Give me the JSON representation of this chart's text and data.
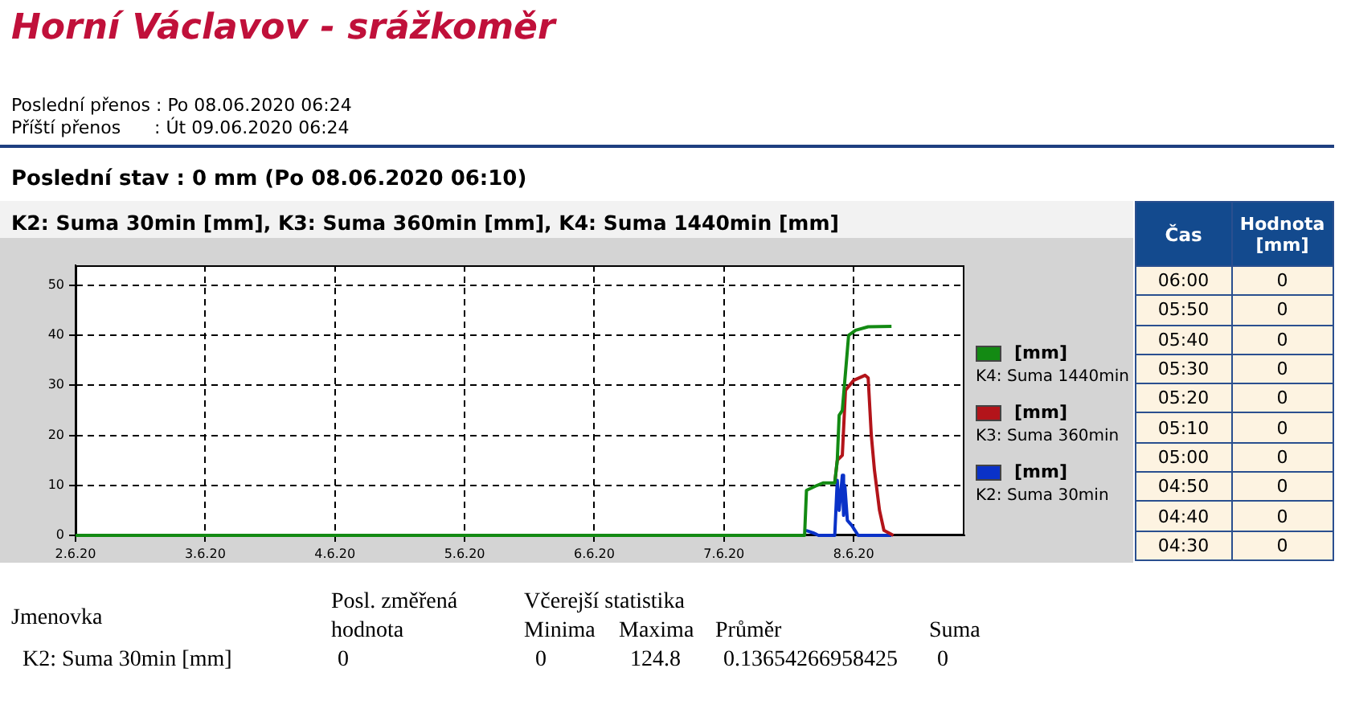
{
  "chart_data": [
    {
      "type": "line",
      "title": "Horní Václavov - srážkoměr",
      "subtitle": "K2: Suma 30min [mm], K3: Suma 360min [mm], K4: Suma 1440min [mm]",
      "annotations": [
        "Poslední přenos : Po 08.06.2020 06:24",
        "Příští přenos      : Út 09.06.2020 06:24",
        "Poslední stav : 0 mm (Po 08.06.2020 06:10)",
        "Jmenovka",
        "Posl. změřená",
        "hodnota",
        "Včerejší statistika",
        "Minima",
        "Maxima",
        "Průměr",
        "Suma",
        "K2: Suma 30min [mm]",
        "0",
        "0",
        "124.8",
        "0.13654266958425",
        "0",
        "Čas",
        "Hodnota [mm]",
        "06:00",
        "0",
        "05:50",
        "0",
        "05:40",
        "0",
        "05:30",
        "0",
        "05:20",
        "0",
        "05:10",
        "0",
        "05:00",
        "0",
        "04:50",
        "0",
        "04:40",
        "0",
        "04:30",
        "0"
      ],
      "series": [
        {
          "name": "[mm]\nK4: Suma 1440min",
          "color": "#138a13",
          "x": [
            "2020-06-02T00:00",
            "2020-06-07T14:55",
            "2020-06-07T15:16",
            "2020-06-07T17:15",
            "2020-06-07T18:25",
            "2020-06-07T20:30",
            "2020-06-07T20:58",
            "2020-06-07T21:19",
            "2020-06-07T21:54",
            "2020-06-07T23:04",
            "2020-06-08T00:21",
            "2020-06-08T02:41",
            "2020-06-08T07:00"
          ],
          "values": [
            0,
            0,
            9,
            10,
            10.5,
            10.5,
            15,
            24,
            25,
            40,
            41,
            41.7,
            41.8
          ]
        },
        {
          "name": "[mm]\nK3: Suma 360min",
          "color": "#b3141a",
          "x": [
            "2020-06-07T20:30",
            "2020-06-07T20:58",
            "2020-06-07T21:54",
            "2020-06-07T22:29",
            "2020-06-08T00:00",
            "2020-06-08T02:06",
            "2020-06-08T02:41",
            "2020-06-08T03:16",
            "2020-06-08T03:51",
            "2020-06-08T04:47",
            "2020-06-08T05:36",
            "2020-06-08T07:21"
          ],
          "values": [
            10.5,
            15,
            16,
            29,
            31,
            32,
            31.5,
            20,
            13,
            5,
            1,
            0
          ]
        },
        {
          "name": "[mm]\nK2: Suma 30min",
          "color": "#0a32c8",
          "x": [
            "2020-06-07T15:10",
            "2020-06-07T16:30",
            "2020-06-07T17:30",
            "2020-06-07T20:30",
            "2020-06-07T20:58",
            "2020-06-07T21:19",
            "2020-06-07T21:54",
            "2020-06-07T22:08",
            "2020-06-07T22:22",
            "2020-06-07T22:50",
            "2020-06-07T23:39",
            "2020-06-08T00:50",
            "2020-06-08T07:00"
          ],
          "values": [
            1,
            0.5,
            0,
            0,
            11,
            5,
            12,
            4,
            10,
            3,
            2,
            0,
            0
          ]
        }
      ],
      "xlim": [
        "2020-06-02T00:00",
        "2020-06-08T20:30"
      ],
      "xticks": [
        {
          "value": "2020-06-02",
          "label": "2.6.20"
        },
        {
          "value": "2020-06-03",
          "label": "3.6.20"
        },
        {
          "value": "2020-06-04",
          "label": "4.6.20"
        },
        {
          "value": "2020-06-05",
          "label": "5.6.20"
        },
        {
          "value": "2020-06-06",
          "label": "6.6.20"
        },
        {
          "value": "2020-06-07",
          "label": "7.6.20"
        },
        {
          "value": "2020-06-08",
          "label": "8.6.20"
        }
      ],
      "ylim": [
        0,
        54
      ],
      "yticks": [
        0,
        10,
        20,
        30,
        40,
        50
      ],
      "grid": true,
      "legend": "right",
      "line_style": "solid",
      "marker": "none"
    }
  ]
}
